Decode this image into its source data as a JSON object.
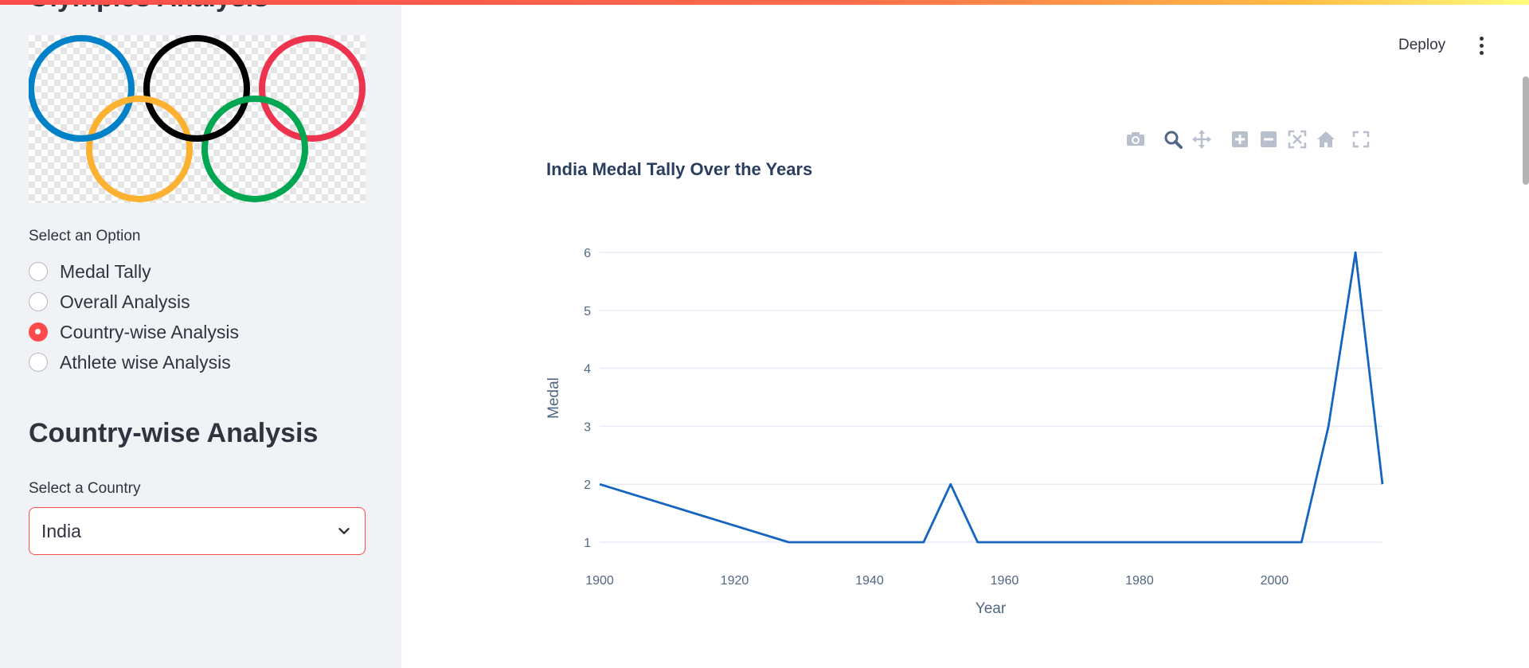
{
  "app": {
    "sidebar_title": "Olympics Analysis",
    "header": {
      "deploy_label": "Deploy"
    }
  },
  "sidebar": {
    "option_label": "Select an Option",
    "options": [
      {
        "label": "Medal Tally",
        "selected": false
      },
      {
        "label": "Overall Analysis",
        "selected": false
      },
      {
        "label": "Country-wise Analysis",
        "selected": true
      },
      {
        "label": "Athlete wise Analysis",
        "selected": false
      }
    ],
    "section_heading": "Country-wise Analysis",
    "country_label": "Select a Country",
    "country_value": "India"
  },
  "chart_toolbar": [
    "camera-icon",
    "zoom-icon",
    "pan-icon",
    "zoom-in-icon",
    "zoom-out-icon",
    "autoscale-icon",
    "reset-axes-icon",
    "fullscreen-icon"
  ],
  "colors": {
    "accent": "#ff4b4b",
    "line": "#1565c0",
    "sidebar_bg": "#f0f2f6",
    "rings": [
      "#0081c8",
      "#000000",
      "#ee334e",
      "#fcb131",
      "#00a651"
    ]
  },
  "chart_data": {
    "type": "line",
    "title": "India Medal Tally Over the Years",
    "xlabel": "Year",
    "ylabel": "Medal",
    "xlim": [
      1900,
      2016
    ],
    "ylim": [
      1,
      6
    ],
    "x_ticks": [
      1900,
      1920,
      1940,
      1960,
      1980,
      2000
    ],
    "y_ticks": [
      1,
      2,
      3,
      4,
      5,
      6
    ],
    "grid": true,
    "series": [
      {
        "x": [
          1900,
          1928,
          1932,
          1936,
          1948,
          1952,
          1956,
          1964,
          1972,
          1980,
          1996,
          2000,
          2004,
          2008,
          2012,
          2016
        ],
        "y": [
          2,
          1,
          1,
          1,
          1,
          2,
          1,
          1,
          1,
          1,
          1,
          1,
          1,
          3,
          6,
          2
        ]
      }
    ]
  }
}
